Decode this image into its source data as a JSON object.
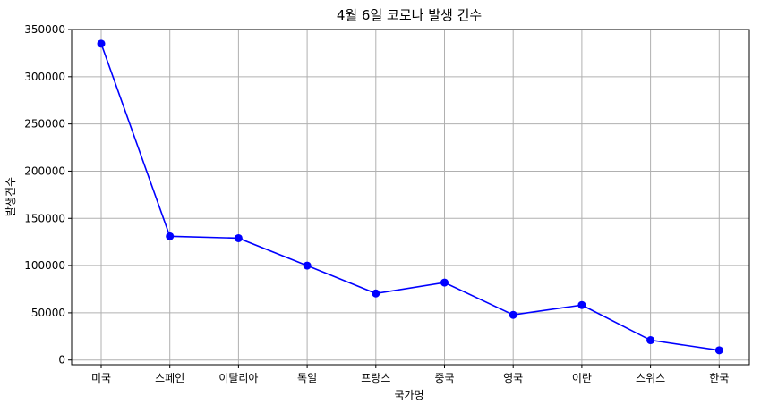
{
  "chart_data": {
    "type": "line",
    "title": "4월 6일 코로나 발생 건수",
    "xlabel": "국가명",
    "ylabel": "발생건수",
    "categories": [
      "미국",
      "스페인",
      "이탈리아",
      "독일",
      "프랑스",
      "중국",
      "영국",
      "이란",
      "스위스",
      "한국"
    ],
    "series": [
      {
        "name": "",
        "color": "#0000ff",
        "marker": "circle",
        "values": [
          335000,
          131000,
          129000,
          100000,
          70500,
          82000,
          47800,
          58200,
          21000,
          10300
        ]
      }
    ],
    "ylim": [
      -5000,
      350000
    ],
    "yticks": [
      0,
      50000,
      100000,
      150000,
      200000,
      250000,
      300000,
      350000
    ],
    "grid": true,
    "legend": "none"
  }
}
